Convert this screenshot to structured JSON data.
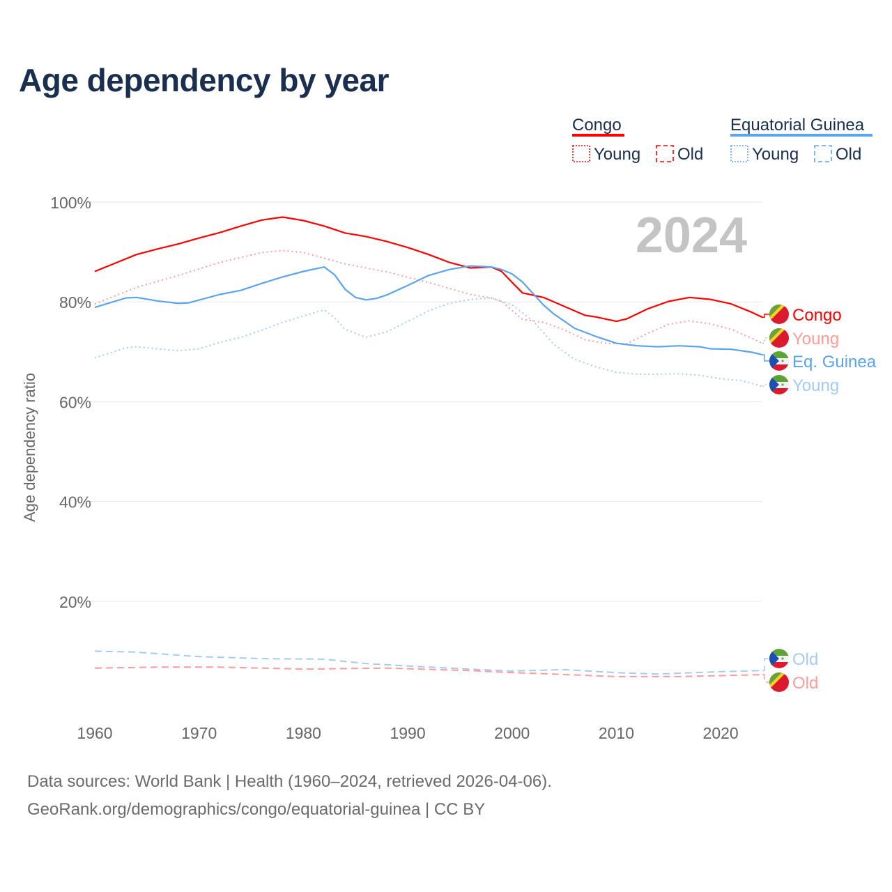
{
  "title": "Age dependency by year",
  "legend": {
    "groups": [
      {
        "name": "Congo",
        "color": "#ff0000",
        "items": [
          "Young",
          "Old"
        ]
      },
      {
        "name": "Equatorial Guinea",
        "color": "#5ba3ea",
        "items": [
          "Young",
          "Old"
        ]
      }
    ]
  },
  "footer": {
    "line1": "Data sources: World Bank | Health (1960–2024, retrieved 2026-04-06).",
    "line2": "GeoRank.org/demographics/congo/equatorial-guinea | CC BY"
  },
  "chart_data": {
    "type": "line",
    "title": "Age dependency by year",
    "year_watermark": "2024",
    "xlabel": "",
    "ylabel": "Age dependency ratio",
    "xlim": [
      1960,
      2024
    ],
    "ylim": [
      0,
      100
    ],
    "x_ticks": [
      "1960",
      "1970",
      "1980",
      "1990",
      "2000",
      "2010",
      "2020"
    ],
    "y_ticks": [
      "20%",
      "40%",
      "60%",
      "80%",
      "100%"
    ],
    "grid": true,
    "series": [
      {
        "name": "Congo",
        "end_label": "Congo",
        "style": "solid",
        "color": "#ff0000",
        "flag": "congo",
        "x": [
          1960,
          1962,
          1964,
          1966,
          1968,
          1970,
          1972,
          1974,
          1976,
          1978,
          1980,
          1982,
          1984,
          1986,
          1988,
          1990,
          1992,
          1994,
          1996,
          1998,
          1999,
          2000,
          2001,
          2003,
          2005,
          2007,
          2008,
          2010,
          2011,
          2013,
          2015,
          2017,
          2019,
          2021,
          2023,
          2024
        ],
        "y": [
          86.1,
          87.8,
          89.5,
          90.6,
          91.6,
          92.8,
          93.9,
          95.2,
          96.4,
          97.0,
          96.3,
          95.2,
          93.8,
          93.1,
          92.1,
          90.9,
          89.5,
          87.9,
          86.8,
          87.0,
          86.1,
          83.9,
          81.8,
          80.9,
          79.1,
          77.3,
          77.0,
          76.1,
          76.6,
          78.6,
          80.1,
          80.9,
          80.5,
          79.6,
          77.9,
          76.9
        ]
      },
      {
        "name": "Congo Young",
        "end_label": "Young",
        "style": "dotted",
        "color": "#ff9b9b",
        "flag": "congo",
        "x": [
          1960,
          1964,
          1968,
          1972,
          1976,
          1978,
          1980,
          1984,
          1988,
          1992,
          1996,
          1998,
          1999,
          2001,
          2003,
          2005,
          2007,
          2009,
          2011,
          2013,
          2015,
          2017,
          2019,
          2021,
          2023,
          2024
        ],
        "y": [
          79.6,
          82.9,
          85.3,
          87.9,
          89.9,
          90.3,
          89.9,
          87.6,
          86.0,
          83.9,
          81.5,
          80.8,
          80.1,
          76.5,
          75.9,
          74.4,
          72.4,
          71.7,
          71.6,
          73.7,
          75.5,
          76.2,
          75.6,
          74.5,
          72.7,
          71.7
        ]
      },
      {
        "name": "Equatorial Guinea",
        "end_label": "Eq. Guinea",
        "style": "solid",
        "color": "#5ba3ea",
        "flag": "eqguinea",
        "x": [
          1960,
          1963,
          1964,
          1966,
          1968,
          1969,
          1972,
          1974,
          1976,
          1978,
          1980,
          1982,
          1983,
          1984,
          1985,
          1986,
          1987,
          1988,
          1990,
          1992,
          1994,
          1996,
          1998,
          1999,
          2000,
          2001,
          2003,
          2004,
          2006,
          2008,
          2010,
          2012,
          2014,
          2016,
          2018,
          2019,
          2021,
          2023,
          2024
        ],
        "y": [
          78.9,
          80.8,
          80.9,
          80.2,
          79.7,
          79.8,
          81.5,
          82.3,
          83.7,
          85.0,
          86.1,
          87.0,
          85.4,
          82.5,
          80.9,
          80.4,
          80.7,
          81.4,
          83.3,
          85.3,
          86.5,
          87.2,
          87.0,
          86.5,
          85.6,
          84.0,
          79.4,
          77.6,
          74.7,
          73.1,
          71.7,
          71.2,
          71.0,
          71.2,
          71.0,
          70.6,
          70.5,
          69.9,
          69.4
        ]
      },
      {
        "name": "Equatorial Guinea Young",
        "end_label": "Young",
        "style": "dotted",
        "color": "#a5cbf3",
        "flag": "eqguinea",
        "x": [
          1960,
          1963,
          1964,
          1966,
          1968,
          1970,
          1972,
          1974,
          1976,
          1978,
          1980,
          1982,
          1983,
          1984,
          1986,
          1988,
          1990,
          1992,
          1994,
          1996,
          1998,
          2000,
          2002,
          2004,
          2006,
          2008,
          2010,
          2012,
          2014,
          2016,
          2018,
          2020,
          2022,
          2024
        ],
        "y": [
          68.8,
          70.8,
          71.0,
          70.6,
          70.2,
          70.6,
          71.9,
          72.9,
          74.3,
          75.9,
          77.2,
          78.4,
          76.8,
          74.5,
          72.9,
          74.0,
          76.1,
          78.2,
          79.7,
          80.5,
          80.8,
          79.4,
          76.2,
          71.5,
          68.5,
          67.0,
          65.9,
          65.5,
          65.5,
          65.6,
          65.3,
          64.6,
          64.2,
          63.1
        ]
      },
      {
        "name": "Equatorial Guinea Old",
        "end_label": "Old",
        "style": "dashed",
        "color": "#a5cbf3",
        "flag": "eqguinea",
        "x": [
          1960,
          1964,
          1970,
          1976,
          1982,
          1986,
          1992,
          2000,
          2005,
          2010,
          2014,
          2020,
          2024
        ],
        "y": [
          10.0,
          9.8,
          8.9,
          8.5,
          8.4,
          7.5,
          6.8,
          6.0,
          6.3,
          5.7,
          5.4,
          5.9,
          6.1
        ]
      },
      {
        "name": "Congo Old",
        "end_label": "Old",
        "style": "dashed",
        "color": "#ff9b9b",
        "flag": "congo",
        "x": [
          1960,
          1966,
          1972,
          1980,
          1988,
          1996,
          2000,
          2004,
          2010,
          2016,
          2024
        ],
        "y": [
          6.6,
          6.8,
          6.8,
          6.4,
          6.6,
          6.1,
          5.7,
          5.4,
          4.9,
          4.9,
          5.3
        ]
      }
    ]
  }
}
